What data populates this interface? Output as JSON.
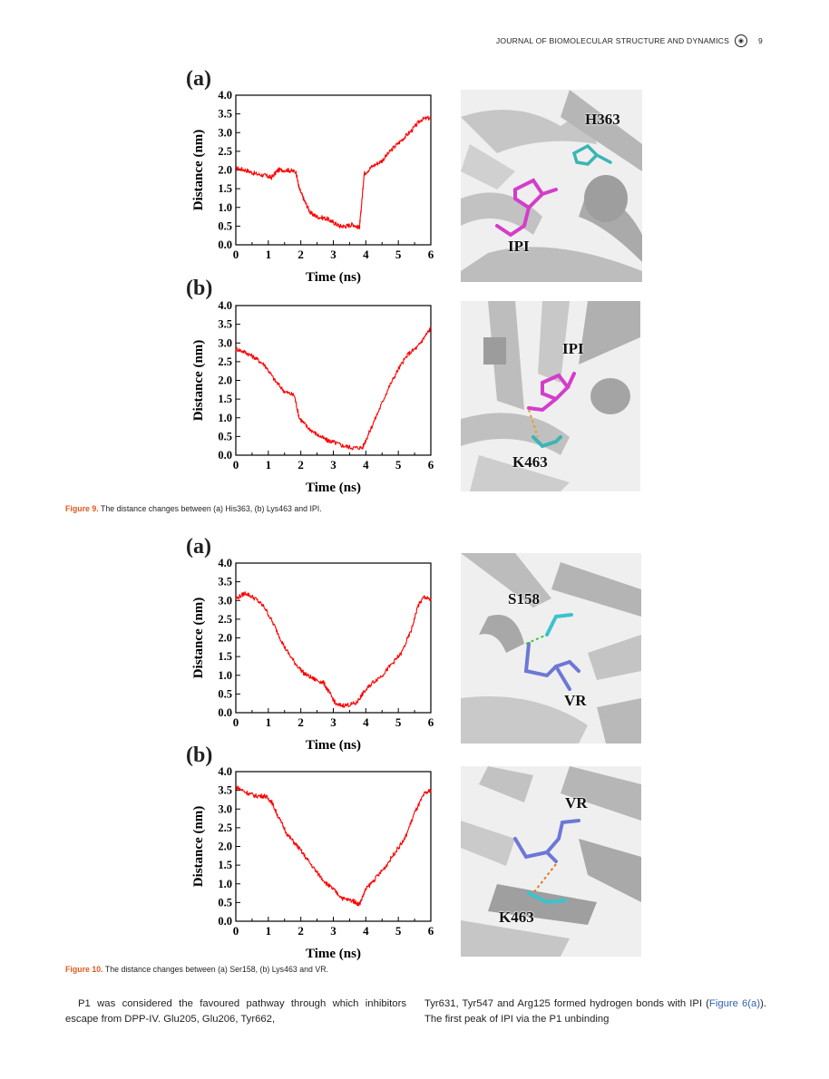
{
  "running_head": {
    "journal": "JOURNAL OF BIOMOLECULAR STRUCTURE AND DYNAMICS",
    "page": "9"
  },
  "figure9": {
    "caption_num": "Figure 9.",
    "caption_text": "The distance changes between (a) His363, (b) Lys463 and IPI.",
    "panel_a": {
      "label": "(a)",
      "chart_data": {
        "type": "line",
        "xlabel": "Time (ns)",
        "ylabel": "Distance (nm)",
        "xlim": [
          0,
          6
        ],
        "ylim": [
          0,
          4
        ],
        "xticks": [
          "0",
          "1",
          "2",
          "3",
          "4",
          "5",
          "6"
        ],
        "yticks": [
          "0.0",
          "0.5",
          "1.0",
          "1.5",
          "2.0",
          "2.5",
          "3.0",
          "3.5",
          "4.0"
        ],
        "color": "#ff0000",
        "x": [
          0,
          0.3,
          0.6,
          0.9,
          1.1,
          1.3,
          1.6,
          1.85,
          1.95,
          2.1,
          2.3,
          2.5,
          2.8,
          3.0,
          3.2,
          3.4,
          3.6,
          3.8,
          3.85,
          3.95,
          4.2,
          4.5,
          4.8,
          5.1,
          5.4,
          5.7,
          6.0
        ],
        "y": [
          2.05,
          2.0,
          1.9,
          1.85,
          1.8,
          2.0,
          2.0,
          1.95,
          1.5,
          1.2,
          0.85,
          0.75,
          0.7,
          0.6,
          0.5,
          0.5,
          0.55,
          0.45,
          0.9,
          1.9,
          2.1,
          2.25,
          2.55,
          2.8,
          3.05,
          3.35,
          3.4
        ]
      },
      "residue_top": "H363",
      "residue_bottom": "IPI"
    },
    "panel_b": {
      "label": "(b)",
      "chart_data": {
        "type": "line",
        "xlabel": "Time (ns)",
        "ylabel": "Distance (nm)",
        "xlim": [
          0,
          6
        ],
        "ylim": [
          0,
          4
        ],
        "xticks": [
          "0",
          "1",
          "2",
          "3",
          "4",
          "5",
          "6"
        ],
        "yticks": [
          "0.0",
          "0.5",
          "1.0",
          "1.5",
          "2.0",
          "2.5",
          "3.0",
          "3.5",
          "4.0"
        ],
        "color": "#ff0000",
        "x": [
          0,
          0.3,
          0.6,
          0.9,
          1.2,
          1.5,
          1.8,
          1.95,
          2.2,
          2.5,
          2.8,
          3.0,
          3.3,
          3.6,
          3.9,
          4.1,
          4.4,
          4.7,
          5.0,
          5.3,
          5.6,
          5.8,
          6.0
        ],
        "y": [
          2.85,
          2.75,
          2.6,
          2.4,
          2.0,
          1.7,
          1.6,
          1.0,
          0.75,
          0.55,
          0.4,
          0.35,
          0.25,
          0.2,
          0.2,
          0.6,
          1.2,
          1.8,
          2.3,
          2.7,
          2.9,
          3.15,
          3.4
        ]
      },
      "residue_top": "IPI",
      "residue_bottom": "K463"
    }
  },
  "figure10": {
    "caption_num": "Figure 10.",
    "caption_text": "The distance changes between (a) Ser158, (b) Lys463 and VR.",
    "panel_a": {
      "label": "(a)",
      "chart_data": {
        "type": "line",
        "xlabel": "Time (ns)",
        "ylabel": "Distance (nm)",
        "xlim": [
          0,
          6
        ],
        "ylim": [
          0,
          4
        ],
        "xticks": [
          "0",
          "1",
          "2",
          "3",
          "4",
          "5",
          "6"
        ],
        "yticks": [
          "0.0",
          "0.5",
          "1.0",
          "1.5",
          "2.0",
          "2.5",
          "3.0",
          "3.5",
          "4.0"
        ],
        "color": "#ff0000",
        "x": [
          0,
          0.3,
          0.6,
          0.9,
          1.2,
          1.5,
          1.8,
          2.1,
          2.4,
          2.7,
          2.9,
          3.1,
          3.4,
          3.7,
          3.9,
          4.2,
          4.5,
          4.8,
          5.1,
          5.4,
          5.6,
          5.8,
          6.0
        ],
        "y": [
          3.05,
          3.2,
          3.05,
          2.8,
          2.3,
          1.75,
          1.35,
          1.05,
          0.9,
          0.8,
          0.5,
          0.2,
          0.2,
          0.25,
          0.5,
          0.8,
          1.0,
          1.3,
          1.6,
          2.2,
          2.85,
          3.1,
          3.0
        ]
      },
      "residue_top": "S158",
      "residue_bottom": "VR"
    },
    "panel_b": {
      "label": "(b)",
      "chart_data": {
        "type": "line",
        "xlabel": "Time (ns)",
        "ylabel": "Distance (nm)",
        "xlim": [
          0,
          6
        ],
        "ylim": [
          0,
          4
        ],
        "xticks": [
          "0",
          "1",
          "2",
          "3",
          "4",
          "5",
          "6"
        ],
        "yticks": [
          "0.0",
          "0.5",
          "1.0",
          "1.5",
          "2.0",
          "2.5",
          "3.0",
          "3.5",
          "4.0"
        ],
        "color": "#ff0000",
        "x": [
          0,
          0.3,
          0.6,
          0.9,
          1.1,
          1.3,
          1.6,
          1.9,
          2.2,
          2.5,
          2.8,
          3.0,
          3.3,
          3.6,
          3.8,
          4.0,
          4.3,
          4.6,
          4.9,
          5.2,
          5.5,
          5.8,
          6.0
        ],
        "y": [
          3.6,
          3.45,
          3.35,
          3.35,
          3.2,
          2.8,
          2.3,
          2.0,
          1.65,
          1.3,
          1.0,
          0.85,
          0.6,
          0.55,
          0.45,
          0.85,
          1.15,
          1.45,
          1.85,
          2.2,
          2.9,
          3.4,
          3.5
        ]
      },
      "residue_top": "VR",
      "residue_bottom": "K463"
    }
  },
  "body": {
    "left": "P1 was considered the favoured pathway through which inhibitors escape from DPP-IV. Glu205, Glu206, Tyr662,",
    "right_pre": "Tyr631, Tyr547 and Arg125 formed hydrogen bonds with IPI (",
    "right_link": "Figure 6(a)",
    "right_post": "). The first peak of IPI via the P1 unbinding"
  },
  "colors": {
    "caption_accent": "#e0591d",
    "link": "#2f63b0",
    "line": "#ff0000"
  }
}
